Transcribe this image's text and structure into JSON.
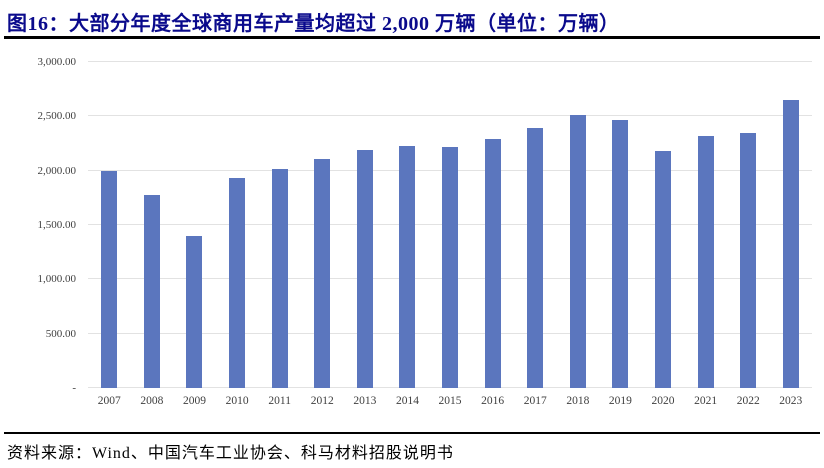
{
  "caption": {
    "text": "图16：大部分年度全球商用车产量均超过 2,000 万辆（单位：万辆）"
  },
  "source": {
    "text": "资料来源：Wind、中国汽车工业协会、科马材料招股说明书"
  },
  "colors": {
    "caption": "#0A0A8C",
    "bar": "#5B76BE",
    "gridline": "#E2E2E2",
    "axis_text": "#404040"
  },
  "chart_data": {
    "type": "bar",
    "title": "大部分年度全球商用车产量均超过 2,000 万辆",
    "unit": "万辆",
    "categories": [
      "2007",
      "2008",
      "2009",
      "2010",
      "2011",
      "2012",
      "2013",
      "2014",
      "2015",
      "2016",
      "2017",
      "2018",
      "2019",
      "2020",
      "2021",
      "2022",
      "2023"
    ],
    "values": [
      2000,
      1780,
      1400,
      1935,
      2020,
      2105,
      2190,
      2230,
      2215,
      2290,
      2390,
      2515,
      2470,
      2185,
      2320,
      2350,
      2650
    ],
    "xlabel": "",
    "ylabel": "",
    "ylim": [
      0,
      3000
    ],
    "grid": true,
    "legend_position": "none",
    "yticks": [
      {
        "value": 0,
        "label": "-"
      },
      {
        "value": 500,
        "label": "500.00"
      },
      {
        "value": 1000,
        "label": "1,000.00"
      },
      {
        "value": 1500,
        "label": "1,500.00"
      },
      {
        "value": 2000,
        "label": "2,000.00"
      },
      {
        "value": 2500,
        "label": "2,500.00"
      },
      {
        "value": 3000,
        "label": "3,000.00"
      }
    ]
  }
}
